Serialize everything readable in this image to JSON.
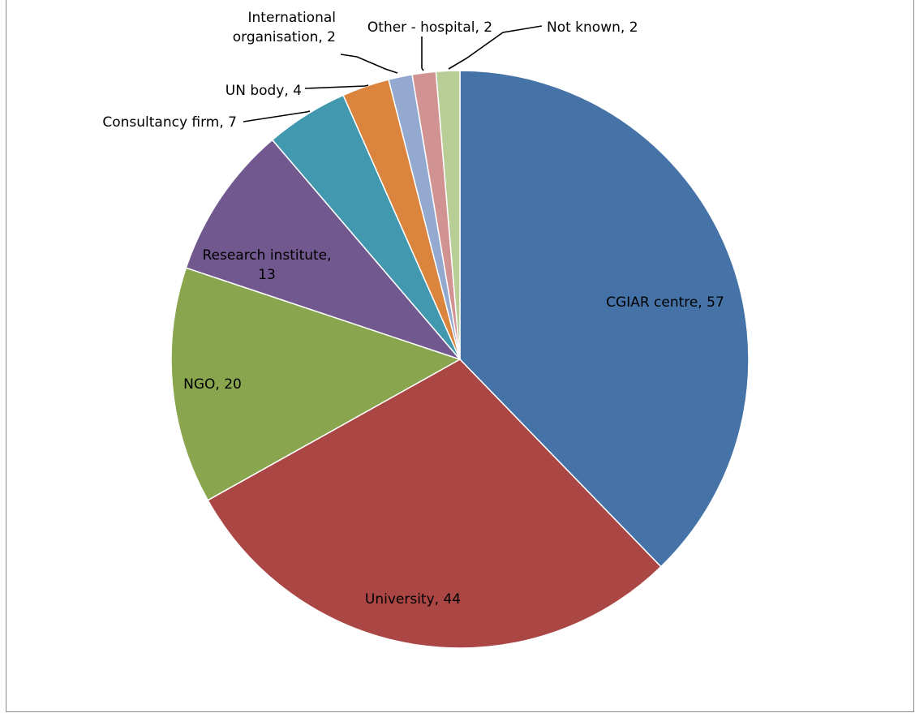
{
  "chart_data": {
    "type": "pie",
    "title": "",
    "slices": [
      {
        "label": "CGIAR centre",
        "value": 57,
        "color": "#4572A7"
      },
      {
        "label": "University",
        "value": 44,
        "color": "#AA4643"
      },
      {
        "label": "NGO",
        "value": 20,
        "color": "#89A54E"
      },
      {
        "label": "Research institute",
        "value": 13,
        "color": "#71588F"
      },
      {
        "label": "Consultancy firm",
        "value": 7,
        "color": "#4198AF"
      },
      {
        "label": "UN body",
        "value": 4,
        "color": "#DB843D"
      },
      {
        "label": "International organisation",
        "value": 2,
        "color": "#93A9CF"
      },
      {
        "label": "Other - hospital",
        "value": 2,
        "color": "#D19392"
      },
      {
        "label": "Not known",
        "value": 2,
        "color": "#B9CD96"
      }
    ],
    "data_labels": [
      {
        "lines": [
          "CGIAR centre, 57"
        ]
      },
      {
        "lines": [
          "University, 44"
        ]
      },
      {
        "lines": [
          "NGO, 20"
        ]
      },
      {
        "lines": [
          "Research institute,",
          "13"
        ]
      },
      {
        "lines": [
          "Consultancy firm, 7"
        ]
      },
      {
        "lines": [
          "UN body, 4"
        ]
      },
      {
        "lines": [
          "International",
          "organisation, 2"
        ]
      },
      {
        "lines": [
          "Other - hospital, 2"
        ]
      },
      {
        "lines": [
          "Not known, 2"
        ]
      }
    ],
    "legend": "none",
    "start_angle": "12 o'clock",
    "direction": "clockwise"
  }
}
